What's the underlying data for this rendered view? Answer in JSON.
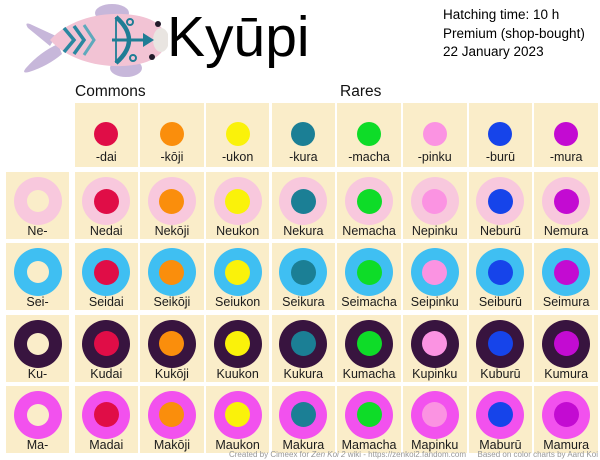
{
  "title": "Kyūpi",
  "info": {
    "hatching": "Hatching time: 10 h",
    "premium": "Premium (shop-bought)",
    "date": "22 January 2023"
  },
  "group_labels": {
    "commons": "Commons",
    "rares": "Rares"
  },
  "colors": {
    "cell_bg": "#FAEDC9",
    "label_text": "#1B1B1B",
    "fish_body": "#F2C3D4",
    "fish_fins": "#C7B7DA",
    "fish_pattern": "#1F7D95"
  },
  "chart_data": {
    "type": "table",
    "title": "Kyūpi",
    "columns": [
      {
        "suffix": "-dai",
        "color": "#E00D47",
        "group": "Commons"
      },
      {
        "suffix": "-kōji",
        "color": "#FA8E0C",
        "group": "Commons"
      },
      {
        "suffix": "-ukon",
        "color": "#FAF20A",
        "group": "Commons"
      },
      {
        "suffix": "-kura",
        "color": "#1B7F95",
        "group": "Commons"
      },
      {
        "suffix": "-macha",
        "color": "#0EDC28",
        "group": "Rares"
      },
      {
        "suffix": "-pinku",
        "color": "#FB93E2",
        "group": "Rares"
      },
      {
        "suffix": "-burū",
        "color": "#1644EA",
        "group": "Rares"
      },
      {
        "suffix": "-mura",
        "color": "#C30BD2",
        "group": "Rares"
      }
    ],
    "rows": [
      {
        "prefix": "Ne-",
        "color": "#F8C8DD",
        "names": [
          "Nedai",
          "Nekōji",
          "Neukon",
          "Nekura",
          "Nemacha",
          "Nepinku",
          "Neburū",
          "Nemura"
        ]
      },
      {
        "prefix": "Sei-",
        "color": "#3FBFF2",
        "names": [
          "Seidai",
          "Seikōji",
          "Seiukon",
          "Seikura",
          "Seimacha",
          "Seipinku",
          "Seiburū",
          "Seimura"
        ]
      },
      {
        "prefix": "Ku-",
        "color": "#38143F",
        "names": [
          "Kudai",
          "Kukōji",
          "Kuukon",
          "Kukura",
          "Kumacha",
          "Kupinku",
          "Kuburū",
          "Kumura"
        ]
      },
      {
        "prefix": "Ma-",
        "color": "#F251EE",
        "names": [
          "Madai",
          "Makōji",
          "Maukon",
          "Makura",
          "Mamacha",
          "Mapinku",
          "Maburū",
          "Mamura"
        ]
      }
    ]
  },
  "footer": {
    "created_pre": "Created by Cimeex for ",
    "created_italic": "Zen Koi 2",
    "created_post": " wiki - https://zenkoi2.fandom.com",
    "based": "Based on color charts by Aard Koi"
  }
}
